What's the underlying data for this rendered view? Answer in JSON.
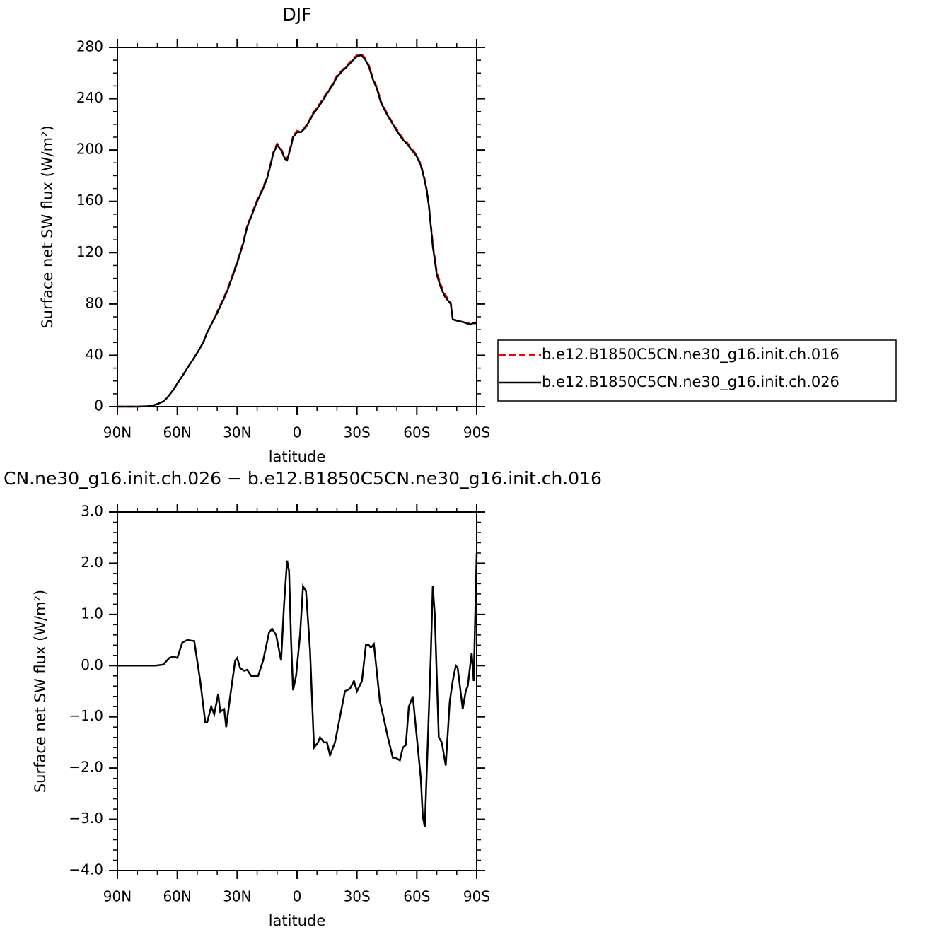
{
  "chart_data": [
    {
      "type": "line",
      "title": "DJF",
      "x_label": "latitude",
      "y_label": "Surface net SW flux (W/m²)",
      "x": [
        90,
        85,
        80,
        75,
        72,
        70,
        67,
        65,
        62,
        60,
        57,
        55,
        52,
        50,
        47,
        45,
        42,
        40,
        37,
        35,
        32,
        30,
        27,
        25,
        22,
        20,
        17,
        15,
        13,
        12,
        10,
        8,
        6,
        5,
        3,
        2,
        0,
        -2,
        -4,
        -6,
        -8,
        -10,
        -13,
        -15,
        -18,
        -20,
        -23,
        -25,
        -28,
        -30,
        -32,
        -34,
        -36,
        -38,
        -40,
        -42,
        -45,
        -48,
        -50,
        -53,
        -55,
        -58,
        -60,
        -62,
        -64,
        -65,
        -66,
        -68,
        -70,
        -72,
        -74,
        -76,
        -77,
        -78,
        -80,
        -83,
        -85,
        -87,
        -88,
        -90
      ],
      "series": [
        {
          "name": "b.e12.B1850C5CN.ne30_g16.init.ch.016",
          "color": "#ff0000",
          "line_style": "dashed",
          "values": [
            0,
            0,
            0,
            0.3,
            1,
            2,
            4,
            7,
            13,
            18,
            25,
            30,
            37,
            42,
            50,
            58,
            67,
            74,
            84,
            91,
            104,
            113,
            128,
            141,
            153,
            161,
            171,
            179,
            191,
            198,
            205,
            201,
            194,
            193,
            204,
            211,
            215,
            214,
            218,
            223,
            229,
            233,
            240,
            245,
            252,
            258,
            263,
            266,
            271,
            274,
            275,
            272,
            266,
            256,
            249,
            238,
            229,
            221,
            216,
            209,
            206,
            200,
            196,
            189,
            177,
            169,
            158,
            127,
            105,
            95,
            88,
            83,
            81,
            69,
            67,
            66,
            65,
            65,
            65,
            66
          ]
        },
        {
          "name": "b.e12.B1850C5CN.ne30_g16.init.ch.026",
          "color": "#000000",
          "line_style": "solid",
          "values": [
            0,
            0,
            0,
            0.3,
            1,
            2,
            4,
            7,
            13,
            18,
            25,
            30,
            37,
            42,
            50,
            58,
            67,
            73,
            83,
            90,
            103,
            112,
            127,
            140,
            152,
            160,
            170,
            178,
            190,
            197,
            204,
            200,
            193,
            192,
            203,
            210,
            214,
            214,
            217,
            222,
            228,
            232,
            239,
            244,
            251,
            257,
            262,
            265,
            270,
            273,
            274,
            271,
            265,
            255,
            248,
            237,
            228,
            220,
            215,
            208,
            205,
            199,
            195,
            188,
            176,
            168,
            157,
            125,
            103,
            93,
            86,
            82,
            80,
            68,
            67,
            66,
            65,
            64,
            65,
            65
          ]
        }
      ],
      "xlim": [
        90,
        -90
      ],
      "xticks": [
        {
          "value": 90,
          "label": "90N"
        },
        {
          "value": 60,
          "label": "60N"
        },
        {
          "value": 30,
          "label": "30N"
        },
        0,
        {
          "value": -30,
          "label": "30S"
        },
        {
          "value": -60,
          "label": "60S"
        },
        {
          "value": -90,
          "label": "90S"
        }
      ],
      "ylim": [
        0,
        280
      ],
      "yticks": [
        0,
        40,
        80,
        120,
        160,
        200,
        240,
        280
      ],
      "legend": "right",
      "grid": false
    },
    {
      "type": "line",
      "title": "CN.ne30_g16.init.ch.026 − b.e12.B1850C5CN.ne30_g16.init.ch.016",
      "x_label": "latitude",
      "y_label": "Surface net SW flux (W/m²)",
      "x": [
        90,
        80,
        75,
        71,
        67,
        64,
        62,
        60,
        57.5,
        55,
        51.5,
        48.5,
        46,
        45,
        43,
        41.5,
        39.5,
        38.5,
        36.5,
        35.5,
        33.5,
        31,
        30,
        28.5,
        26.5,
        25,
        23,
        19.5,
        17,
        14,
        12.5,
        10.5,
        8,
        6.5,
        5,
        4,
        3,
        2,
        0.5,
        -1.5,
        -3,
        -4.5,
        -6.5,
        -8.5,
        -10.5,
        -11.5,
        -13.5,
        -15,
        -16.5,
        -19,
        -21.5,
        -24,
        -26.5,
        -28.5,
        -30,
        -32.5,
        -34.5,
        -36,
        -37,
        -38.5,
        -41.5,
        -43,
        -45.5,
        -48,
        -49.5,
        -51.5,
        -53,
        -54.5,
        -56,
        -58,
        -60,
        -62,
        -63,
        -64,
        -65.5,
        -67,
        -68,
        -69,
        -71,
        -72.5,
        -74.5,
        -76.5,
        -78,
        -79.5,
        -80.5,
        -83,
        -84.5,
        -85.5,
        -87.5,
        -88.5,
        -90
      ],
      "series": [
        {
          "color": "#000000",
          "values": [
            0,
            0,
            0,
            0,
            0.02,
            0.15,
            0.18,
            0.15,
            0.45,
            0.5,
            0.48,
            -0.3,
            -1.1,
            -1.1,
            -0.8,
            -0.95,
            -0.55,
            -0.9,
            -0.85,
            -1.2,
            -0.6,
            0.1,
            0.15,
            -0.05,
            -0.1,
            -0.08,
            -0.2,
            -0.2,
            0.1,
            0.65,
            0.72,
            0.6,
            0.1,
            1.2,
            2.05,
            1.85,
            0.5,
            -0.48,
            -0.2,
            0.6,
            1.55,
            1.45,
            0.3,
            -1.6,
            -1.5,
            -1.4,
            -1.5,
            -1.5,
            -1.75,
            -1.5,
            -1.0,
            -0.5,
            -0.45,
            -0.3,
            -0.5,
            -0.3,
            0.4,
            0.4,
            0.35,
            0.42,
            -0.7,
            -0.95,
            -1.4,
            -1.8,
            -1.8,
            -1.85,
            -1.6,
            -1.55,
            -0.8,
            -0.6,
            -1.4,
            -2.2,
            -2.95,
            -3.15,
            -1.5,
            0.2,
            1.55,
            1.0,
            -1.4,
            -1.5,
            -1.95,
            -0.7,
            -0.3,
            0,
            -0.05,
            -0.85,
            -0.5,
            -0.4,
            0.25,
            -0.3,
            2.2
          ]
        }
      ],
      "xlim": [
        90,
        -90
      ],
      "xticks": [
        {
          "value": 90,
          "label": "90N"
        },
        {
          "value": 60,
          "label": "60N"
        },
        {
          "value": 30,
          "label": "30N"
        },
        0,
        {
          "value": -30,
          "label": "30S"
        },
        {
          "value": -60,
          "label": "60S"
        },
        {
          "value": -90,
          "label": "90S"
        }
      ],
      "ylim": [
        -4,
        3
      ],
      "yticks": [
        {
          "value": -4,
          "label": "−4.0"
        },
        {
          "value": -3,
          "label": "−3.0"
        },
        {
          "value": -2,
          "label": "−2.0"
        },
        {
          "value": -1,
          "label": "−1.0"
        },
        {
          "value": 0,
          "label": "0.0"
        },
        {
          "value": 1,
          "label": "1.0"
        },
        {
          "value": 2,
          "label": "2.0"
        },
        {
          "value": 3,
          "label": "3.0"
        }
      ],
      "grid": false
    }
  ]
}
